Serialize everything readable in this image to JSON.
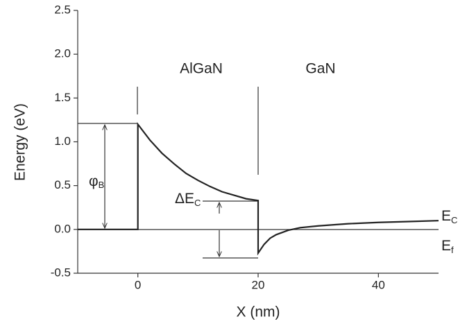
{
  "chart_data": {
    "type": "line",
    "x_label": "X (nm)",
    "y_label": "Energy (eV)",
    "xlim": [
      -10,
      50
    ],
    "xticks": [
      0,
      20,
      40
    ],
    "ylim": [
      -0.5,
      2.5
    ],
    "yticks": [
      -0.5,
      {
        "value": 0,
        "label": "0.0"
      },
      0.5,
      {
        "value": 1,
        "label": "1.0"
      },
      1.5,
      {
        "value": 2,
        "label": "2.0"
      },
      2.5
    ],
    "x": [
      -10,
      0,
      0,
      2,
      4,
      6,
      8,
      10,
      12,
      14,
      16,
      18,
      20,
      20,
      21,
      22,
      23,
      25,
      27,
      30,
      35,
      40,
      45,
      50
    ],
    "series": [
      {
        "color": "#222222",
        "values": [
          0,
          0,
          1.2,
          1.02,
          0.87,
          0.75,
          0.64,
          0.56,
          0.49,
          0.43,
          0.39,
          0.35,
          0.33,
          -0.27,
          -0.17,
          -0.1,
          -0.06,
          -0.01,
          0.02,
          0.04,
          0.065,
          0.08,
          0.09,
          0.1
        ]
      }
    ],
    "annotations": {
      "layer1": "AlGaN",
      "layer2": "GaN",
      "barrier": {
        "text": "φ",
        "sub": "B"
      },
      "offset": {
        "text": "ΔE",
        "sub": "C"
      },
      "conduction": {
        "text": "E",
        "sub": "C"
      },
      "fermi": {
        "text": "E",
        "sub": "f"
      }
    }
  }
}
